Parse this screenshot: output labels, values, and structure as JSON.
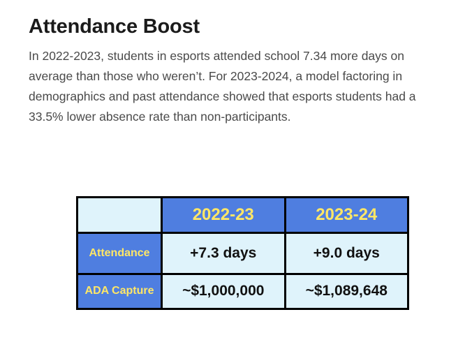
{
  "heading": "Attendance Boost",
  "paragraph": "In 2022-2023, students in esports attended school 7.34 more days on average than those who weren’t. For 2023-2024, a model factoring in demographics and past attendance showed that esports students had a 33.5% lower absence rate than non-participants.",
  "table": {
    "columns": [
      "2022-23",
      "2023-24"
    ],
    "rows": [
      {
        "label": "Attendance",
        "values": [
          "+7.3 days",
          "+9.0 days"
        ]
      },
      {
        "label": "ADA Capture",
        "values": [
          "~$1,000,000",
          "~$1,089,648"
        ]
      }
    ]
  },
  "colors": {
    "header_bg": "#4f7ee0",
    "header_text": "#ffe766",
    "cell_bg": "#dff3fb",
    "border": "#000000"
  }
}
